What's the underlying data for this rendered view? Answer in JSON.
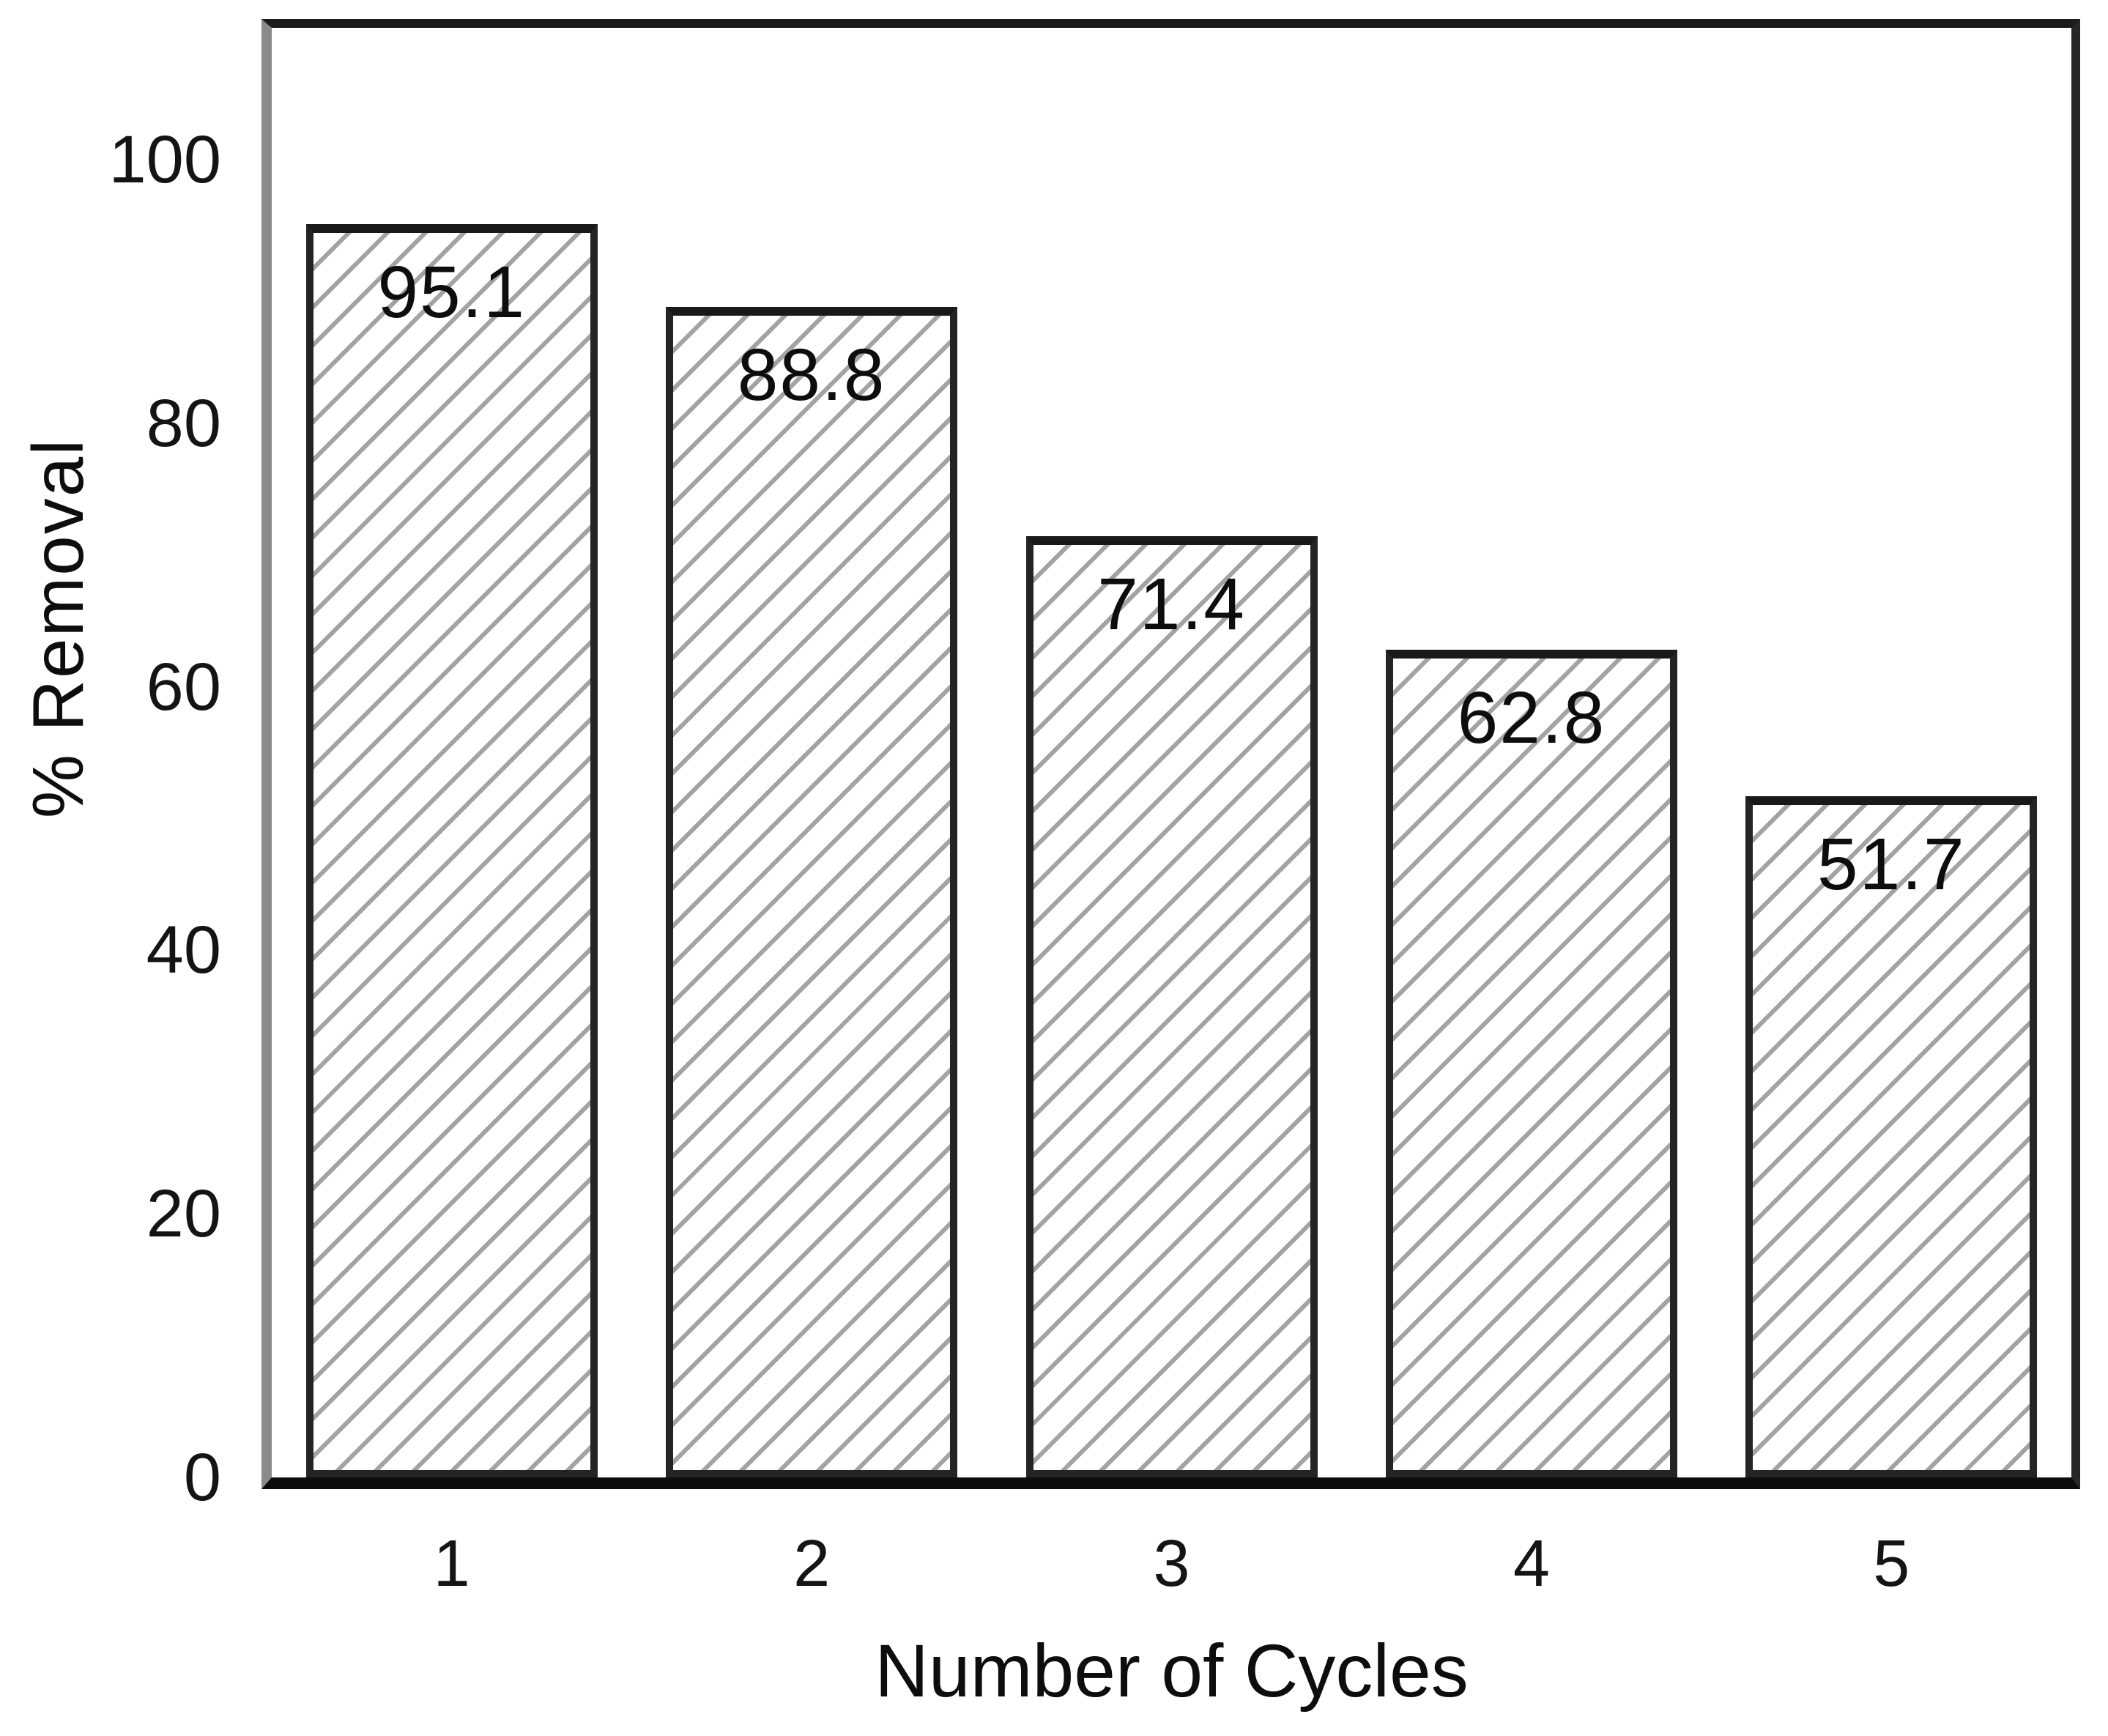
{
  "chart_data": {
    "type": "bar",
    "title": "",
    "categories": [
      "1",
      "2",
      "3",
      "4",
      "5"
    ],
    "values": [
      95.1,
      88.8,
      71.4,
      62.8,
      51.7
    ],
    "value_labels": [
      "95.1",
      "88.8",
      "71.4",
      "62.8",
      "51.7"
    ],
    "xlabel": "Number of Cycles",
    "ylabel": "% Removal",
    "yticks": [
      0,
      20,
      40,
      60,
      80,
      100
    ],
    "ylim": [
      0,
      110
    ],
    "grid": false,
    "legend": "none",
    "bar_style": {
      "hatch": "diagonal-forward",
      "fill": "#ffffff",
      "hatch_color": "#a3a3a3",
      "border_color": "#242424"
    },
    "axis_colors": {
      "left_spine": "#8a8a8a",
      "bottom_spine": "#0c0c0c",
      "top_spine": "#1b1b1b",
      "right_spine": "#262626",
      "text": "#111111"
    }
  }
}
